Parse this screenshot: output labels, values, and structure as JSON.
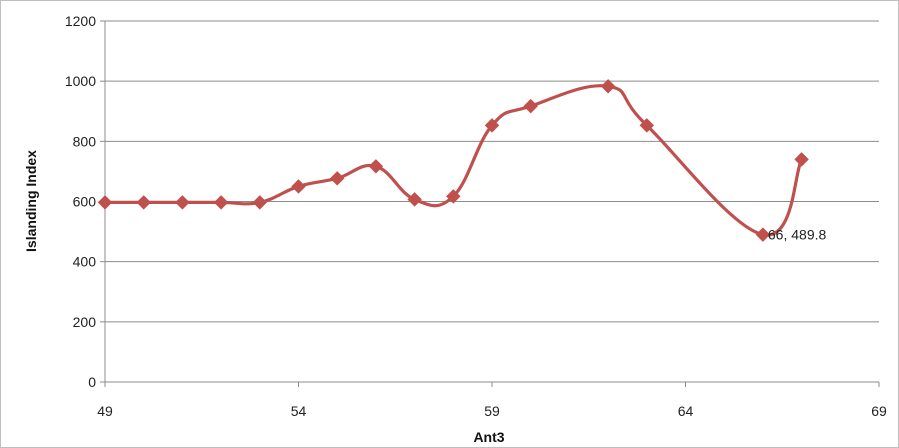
{
  "chart_data": {
    "type": "line",
    "title": "",
    "xlabel": "Ant3",
    "ylabel": "Islanding Index",
    "xlim": [
      49,
      69
    ],
    "ylim": [
      0,
      1200
    ],
    "xticks": [
      49,
      54,
      59,
      64,
      69
    ],
    "yticks": [
      0,
      200,
      400,
      600,
      800,
      1000,
      1200
    ],
    "grid": "horizontal",
    "legend": "none",
    "series": [
      {
        "color": "#c0504d",
        "marker": "diamond",
        "smooth": true,
        "points": [
          {
            "x": 49,
            "y": 597
          },
          {
            "x": 50,
            "y": 597
          },
          {
            "x": 51,
            "y": 597
          },
          {
            "x": 52,
            "y": 597
          },
          {
            "x": 53,
            "y": 597
          },
          {
            "x": 54,
            "y": 650
          },
          {
            "x": 55,
            "y": 677
          },
          {
            "x": 56,
            "y": 717
          },
          {
            "x": 57,
            "y": 607
          },
          {
            "x": 58,
            "y": 617
          },
          {
            "x": 59,
            "y": 853
          },
          {
            "x": 60,
            "y": 917
          },
          {
            "x": 62,
            "y": 983
          },
          {
            "x": 63,
            "y": 853
          },
          {
            "x": 66,
            "y": 489.8
          },
          {
            "x": 67,
            "y": 740
          }
        ]
      }
    ],
    "annotations": [
      {
        "text": "66, 489.8",
        "x": 66,
        "y": 489.8
      }
    ]
  }
}
